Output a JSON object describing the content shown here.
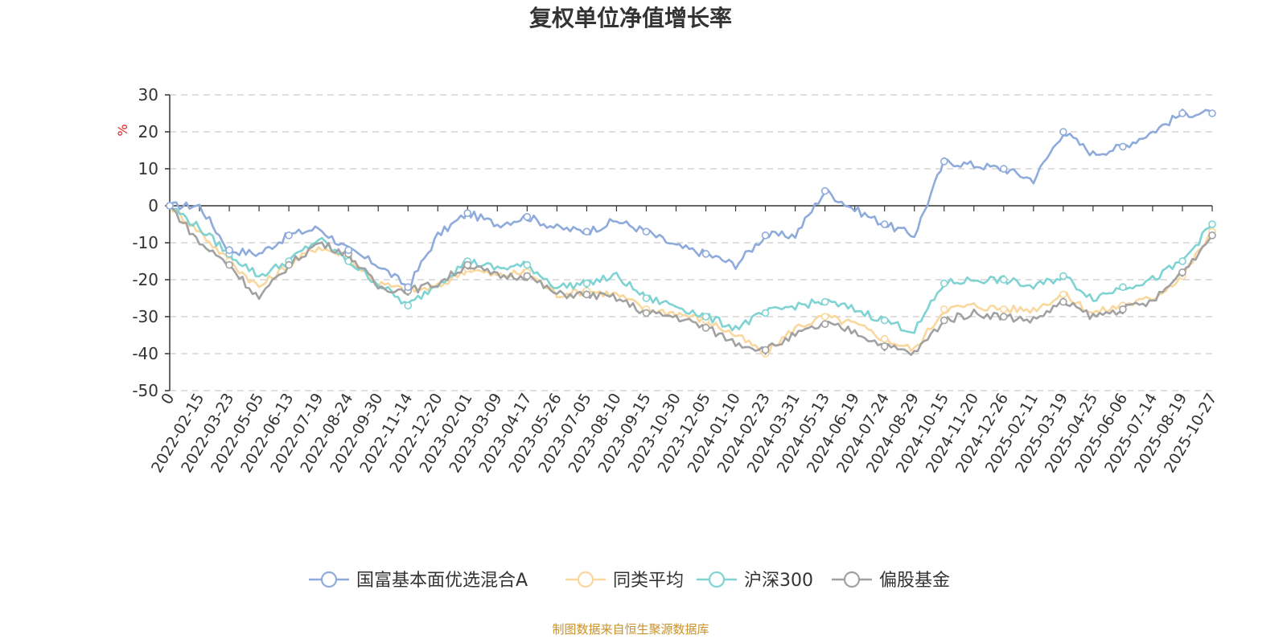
{
  "chart_data": {
    "type": "line",
    "title": "复权单位净值增长率",
    "ylabel": "%",
    "xlabel": "",
    "ylim": [
      -50,
      30
    ],
    "yticks": [
      "30",
      "20",
      "10",
      "0",
      "-10",
      "-20",
      "-30",
      "-40",
      "-50"
    ],
    "grid": "horizontal dashed",
    "legend_position": "bottom-center",
    "categories": [
      "0",
      "2022-02-15",
      "2022-03-23",
      "2022-05-05",
      "2022-06-13",
      "2022-07-19",
      "2022-08-24",
      "2022-09-30",
      "2022-11-14",
      "2022-12-20",
      "2023-02-01",
      "2023-03-09",
      "2023-04-17",
      "2023-05-26",
      "2023-07-05",
      "2023-08-10",
      "2023-09-15",
      "2023-10-30",
      "2023-12-05",
      "2024-01-10",
      "2024-02-23",
      "2024-03-31",
      "2024-05-13",
      "2024-06-19",
      "2024-07-24",
      "2024-08-29",
      "2024-10-15",
      "2024-11-20",
      "2024-12-26",
      "2025-02-11",
      "2025-03-19",
      "2025-04-25",
      "2025-06-06",
      "2025-07-14",
      "2025-08-19",
      "2025-10-27"
    ],
    "series": [
      {
        "name": "国富基本面优选混合A",
        "color": "#8eabdc",
        "values": [
          0,
          0,
          -12,
          -13,
          -8,
          -6,
          -12,
          -16,
          -22,
          -8,
          -2,
          -5,
          -3,
          -6,
          -7,
          -4,
          -7,
          -11,
          -13,
          -16,
          -8,
          -8,
          4,
          -1,
          -5,
          -8,
          12,
          11,
          10,
          7,
          20,
          14,
          16,
          20,
          25,
          25
        ]
      },
      {
        "name": "同类平均",
        "color": "#f9d79d",
        "values": [
          0,
          -7,
          -15,
          -22,
          -16,
          -11,
          -14,
          -21,
          -23,
          -22,
          -17,
          -19,
          -18,
          -24,
          -23,
          -24,
          -28,
          -29,
          -31,
          -35,
          -40,
          -33,
          -30,
          -32,
          -36,
          -39,
          -28,
          -27,
          -28,
          -28,
          -24,
          -29,
          -27,
          -25,
          -19,
          -7
        ]
      },
      {
        "name": "沪深300",
        "color": "#7fd3d3",
        "values": [
          0,
          -6,
          -13,
          -19,
          -15,
          -9,
          -15,
          -21,
          -27,
          -21,
          -15,
          -17,
          -16,
          -22,
          -21,
          -19,
          -25,
          -27,
          -30,
          -33,
          -29,
          -27,
          -26,
          -28,
          -31,
          -34,
          -21,
          -20,
          -20,
          -22,
          -19,
          -25,
          -22,
          -20,
          -15,
          -5
        ]
      },
      {
        "name": "偏股基金",
        "color": "#a1a1a1",
        "values": [
          0,
          -10,
          -16,
          -25,
          -16,
          -10,
          -13,
          -22,
          -23,
          -21,
          -16,
          -19,
          -19,
          -24,
          -24,
          -25,
          -29,
          -30,
          -33,
          -37,
          -39,
          -35,
          -32,
          -34,
          -38,
          -40,
          -31,
          -29,
          -30,
          -31,
          -26,
          -30,
          -28,
          -26,
          -18,
          -8
        ]
      }
    ]
  },
  "source_text": "制图数据来自恒生聚源数据库"
}
